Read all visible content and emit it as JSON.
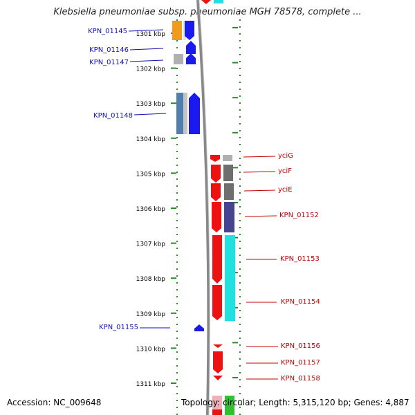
{
  "title": "Klebsiella pneumoniae subsp. pneumoniae MGH 78578, complete ...",
  "footer": {
    "accession": "Accession: NC_009648",
    "stats": "Topology: circular; Length: 5,315,120 bp; Genes: 4,887"
  },
  "ticks": [
    "1301 kbp",
    "1302 kbp",
    "1303 kbp",
    "1304 kbp",
    "1305 kbp",
    "1306 kbp",
    "1307 kbp",
    "1308 kbp",
    "1309 kbp",
    "1310 kbp",
    "1311 kbp"
  ],
  "genes_left": [
    {
      "name": "KPN_01145",
      "strand": "reverse"
    },
    {
      "name": "KPN_01146",
      "strand": "reverse"
    },
    {
      "name": "KPN_01147",
      "strand": "reverse"
    },
    {
      "name": "KPN_01148",
      "strand": "reverse"
    },
    {
      "name": "KPN_01155",
      "strand": "reverse"
    }
  ],
  "genes_right": [
    {
      "name": "yciG",
      "strand": "forward"
    },
    {
      "name": "yciF",
      "strand": "forward"
    },
    {
      "name": "yciE",
      "strand": "forward"
    },
    {
      "name": "KPN_01152",
      "strand": "forward"
    },
    {
      "name": "KPN_01153",
      "strand": "forward"
    },
    {
      "name": "KPN_01154",
      "strand": "forward"
    },
    {
      "name": "KPN_01156",
      "strand": "forward"
    },
    {
      "name": "KPN_01157",
      "strand": "forward"
    },
    {
      "name": "KPN_01158",
      "strand": "forward"
    }
  ],
  "colors": {
    "reverse_gene": "#1a1aee",
    "forward_gene": "#ee1111",
    "tick": "#2a8a2a",
    "backbone": "#888888",
    "cog_orange": "#f39a1a",
    "cog_gray": "#b0b0b0",
    "cog_darkgray": "#6e6e6e",
    "cog_steelblue": "#4f7fb0",
    "cog_purple": "#45458f",
    "cog_cyan": "#22e0e0",
    "cog_green": "#30c030",
    "cog_pink": "#f0b0b8"
  }
}
